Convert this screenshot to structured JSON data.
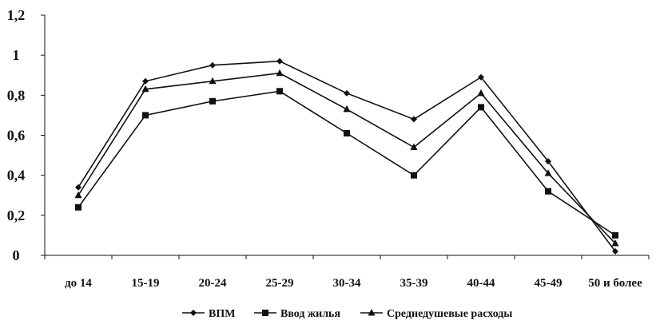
{
  "chart_data": {
    "type": "line",
    "title": "",
    "xlabel": "",
    "ylabel": "",
    "categories": [
      "до 14",
      "15-19",
      "20-24",
      "25-29",
      "30-34",
      "35-39",
      "40-44",
      "45-49",
      "50 и более"
    ],
    "ylim": [
      0,
      1.2
    ],
    "y_ticks": [
      "0",
      "0,2",
      "0,4",
      "0,6",
      "0,8",
      "1",
      "1,2"
    ],
    "grid": false,
    "legend_position": "bottom",
    "series": [
      {
        "name": "ВПМ",
        "marker": "diamond",
        "values": [
          0.34,
          0.87,
          0.95,
          0.97,
          0.81,
          0.68,
          0.89,
          0.47,
          0.02
        ]
      },
      {
        "name": "Ввод жилья",
        "marker": "square",
        "values": [
          0.24,
          0.7,
          0.77,
          0.82,
          0.61,
          0.4,
          0.74,
          0.32,
          0.1
        ]
      },
      {
        "name": "Среднедушевые расходы",
        "marker": "triangle",
        "values": [
          0.3,
          0.83,
          0.87,
          0.91,
          0.73,
          0.54,
          0.81,
          0.41,
          0.06
        ]
      }
    ]
  },
  "colors": {
    "line": "#111111",
    "background": "#ffffff"
  }
}
